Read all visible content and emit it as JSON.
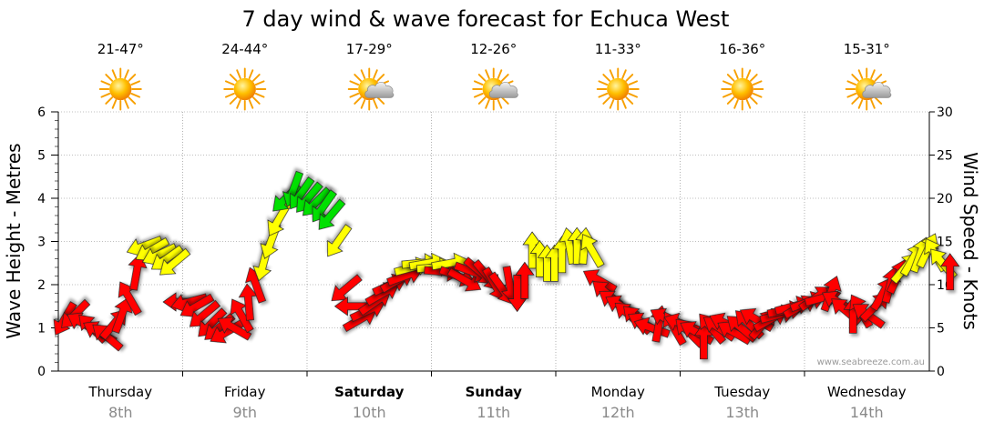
{
  "title": "7 day wind & wave forecast for Echuca West",
  "credit": "www.seabreeze.com.au",
  "colors": {
    "low": "#ff0000",
    "mid": "#ffff00",
    "high": "#00e000",
    "grid": "#808080"
  },
  "days": [
    {
      "name": "Thursday",
      "date": "8th",
      "temp": "21-47°",
      "icon": "sun-icon",
      "bold": false
    },
    {
      "name": "Friday",
      "date": "9th",
      "temp": "24-44°",
      "icon": "sun-icon",
      "bold": false
    },
    {
      "name": "Saturday",
      "date": "10th",
      "temp": "17-29°",
      "icon": "sun-cloud-icon",
      "bold": true
    },
    {
      "name": "Sunday",
      "date": "11th",
      "temp": "12-26°",
      "icon": "sun-cloud-icon",
      "bold": true
    },
    {
      "name": "Monday",
      "date": "12th",
      "temp": "11-33°",
      "icon": "sun-icon",
      "bold": false
    },
    {
      "name": "Tuesday",
      "date": "13th",
      "temp": "16-36°",
      "icon": "sun-icon",
      "bold": false
    },
    {
      "name": "Wednesday",
      "date": "14th",
      "temp": "15-31°",
      "icon": "sun-cloud-icon",
      "bold": false
    }
  ],
  "chart_data": {
    "type": "scatter",
    "title": "7 day wind & wave forecast for Echuca West",
    "ylabel_left": "Wave Height - Metres",
    "ylabel_right": "Wind Speed - Knots",
    "ylim_left": [
      0,
      6
    ],
    "ylim_right": [
      0,
      30
    ],
    "yticks_left": [
      "0",
      "1",
      "2",
      "3",
      "4",
      "5",
      "6"
    ],
    "yticks_right": [
      "0",
      "5",
      "10",
      "15",
      "20",
      "25",
      "30"
    ],
    "grid": true,
    "x_unit": "days from start of Thursday 8th",
    "xlim": [
      -0.25,
      7.0
    ],
    "series": [
      {
        "values": [
          {
            "x": -0.2,
            "y": 6.0,
            "dir": 210
          },
          {
            "x": -0.12,
            "y": 6.5,
            "dir": 225
          },
          {
            "x": -0.05,
            "y": 5.5,
            "dir": 300
          },
          {
            "x": 0.02,
            "y": 5.0,
            "dir": 315
          },
          {
            "x": 0.08,
            "y": 4.5,
            "dir": 300
          },
          {
            "x": 0.14,
            "y": 4.0,
            "dir": 310
          },
          {
            "x": 0.2,
            "y": 5.5,
            "dir": 40
          },
          {
            "x": 0.26,
            "y": 6.5,
            "dir": 20
          },
          {
            "x": 0.32,
            "y": 8.5,
            "dir": 330
          },
          {
            "x": 0.38,
            "y": 11.5,
            "dir": 10
          },
          {
            "x": 0.44,
            "y": 14.5,
            "dir": 250
          },
          {
            "x": 0.5,
            "y": 14.0,
            "dir": 240
          },
          {
            "x": 0.56,
            "y": 13.5,
            "dir": 245
          },
          {
            "x": 0.62,
            "y": 13.0,
            "dir": 235
          },
          {
            "x": 0.68,
            "y": 12.5,
            "dir": 230
          },
          {
            "x": 0.74,
            "y": 8.0,
            "dir": 270
          },
          {
            "x": 0.8,
            "y": 8.0,
            "dir": 255
          },
          {
            "x": 0.86,
            "y": 7.5,
            "dir": 240
          },
          {
            "x": 0.92,
            "y": 6.5,
            "dir": 230
          },
          {
            "x": 0.98,
            "y": 5.5,
            "dir": 225
          },
          {
            "x": 1.04,
            "y": 5.0,
            "dir": 230
          },
          {
            "x": 1.1,
            "y": 4.5,
            "dir": 240
          },
          {
            "x": 1.16,
            "y": 5.0,
            "dir": 300
          },
          {
            "x": 1.22,
            "y": 6.5,
            "dir": 330
          },
          {
            "x": 1.28,
            "y": 8.0,
            "dir": 355
          },
          {
            "x": 1.34,
            "y": 10.0,
            "dir": 340
          },
          {
            "x": 1.4,
            "y": 12.5,
            "dir": 195
          },
          {
            "x": 1.46,
            "y": 15.0,
            "dir": 200
          },
          {
            "x": 1.52,
            "y": 17.5,
            "dir": 210
          },
          {
            "x": 1.58,
            "y": 20.0,
            "dir": 225
          },
          {
            "x": 1.64,
            "y": 21.0,
            "dir": 200
          },
          {
            "x": 1.7,
            "y": 20.5,
            "dir": 215
          },
          {
            "x": 1.76,
            "y": 20.0,
            "dir": 220
          },
          {
            "x": 1.82,
            "y": 19.5,
            "dir": 225
          },
          {
            "x": 1.88,
            "y": 19.0,
            "dir": 215
          },
          {
            "x": 1.94,
            "y": 18.0,
            "dir": 220
          },
          {
            "x": 2.0,
            "y": 15.0,
            "dir": 215
          },
          {
            "x": 2.06,
            "y": 9.5,
            "dir": 230
          },
          {
            "x": 2.12,
            "y": 7.5,
            "dir": 270
          },
          {
            "x": 2.18,
            "y": 6.0,
            "dir": 60
          },
          {
            "x": 2.24,
            "y": 7.0,
            "dir": 65
          },
          {
            "x": 2.3,
            "y": 8.0,
            "dir": 55
          },
          {
            "x": 2.36,
            "y": 9.0,
            "dir": 60
          },
          {
            "x": 2.42,
            "y": 10.0,
            "dir": 65
          },
          {
            "x": 2.48,
            "y": 10.5,
            "dir": 60
          },
          {
            "x": 2.54,
            "y": 11.0,
            "dir": 70
          },
          {
            "x": 2.6,
            "y": 12.0,
            "dir": 75
          },
          {
            "x": 2.66,
            "y": 12.5,
            "dir": 85
          },
          {
            "x": 2.72,
            "y": 12.5,
            "dir": 80
          },
          {
            "x": 2.78,
            "y": 12.0,
            "dir": 85
          },
          {
            "x": 2.84,
            "y": 11.5,
            "dir": 95
          },
          {
            "x": 2.9,
            "y": 12.5,
            "dir": 80
          },
          {
            "x": 2.96,
            "y": 11.0,
            "dir": 110
          },
          {
            "x": 3.02,
            "y": 10.5,
            "dir": 120
          },
          {
            "x": 3.08,
            "y": 11.5,
            "dir": 110
          },
          {
            "x": 3.14,
            "y": 11.5,
            "dir": 130
          },
          {
            "x": 3.2,
            "y": 11.0,
            "dir": 140
          },
          {
            "x": 3.26,
            "y": 10.0,
            "dir": 150
          },
          {
            "x": 3.32,
            "y": 9.5,
            "dir": 145
          },
          {
            "x": 3.38,
            "y": 10.0,
            "dir": 170
          },
          {
            "x": 3.44,
            "y": 9.0,
            "dir": 180
          },
          {
            "x": 3.5,
            "y": 10.5,
            "dir": 0
          },
          {
            "x": 3.56,
            "y": 14.0,
            "dir": 0
          },
          {
            "x": 3.62,
            "y": 13.0,
            "dir": 0
          },
          {
            "x": 3.68,
            "y": 12.5,
            "dir": 0
          },
          {
            "x": 3.74,
            "y": 12.5,
            "dir": 0
          },
          {
            "x": 3.8,
            "y": 13.5,
            "dir": 0
          },
          {
            "x": 3.86,
            "y": 14.5,
            "dir": 350
          },
          {
            "x": 3.92,
            "y": 14.5,
            "dir": 0
          },
          {
            "x": 3.98,
            "y": 14.5,
            "dir": 5
          },
          {
            "x": 4.04,
            "y": 14.0,
            "dir": 330
          },
          {
            "x": 4.1,
            "y": 10.5,
            "dir": 300
          },
          {
            "x": 4.16,
            "y": 9.0,
            "dir": 310
          },
          {
            "x": 4.22,
            "y": 8.0,
            "dir": 305
          },
          {
            "x": 4.28,
            "y": 7.5,
            "dir": 300
          },
          {
            "x": 4.34,
            "y": 6.5,
            "dir": 310
          },
          {
            "x": 4.4,
            "y": 6.0,
            "dir": 315
          },
          {
            "x": 4.46,
            "y": 5.5,
            "dir": 300
          },
          {
            "x": 4.52,
            "y": 5.0,
            "dir": 290
          },
          {
            "x": 4.58,
            "y": 5.5,
            "dir": 10
          },
          {
            "x": 4.64,
            "y": 6.0,
            "dir": 300
          },
          {
            "x": 4.7,
            "y": 5.0,
            "dir": 330
          },
          {
            "x": 4.76,
            "y": 5.5,
            "dir": 290
          },
          {
            "x": 4.82,
            "y": 4.5,
            "dir": 315
          },
          {
            "x": 4.88,
            "y": 4.5,
            "dir": 300
          },
          {
            "x": 4.94,
            "y": 3.5,
            "dir": 0
          },
          {
            "x": 5.0,
            "y": 5.0,
            "dir": 320
          },
          {
            "x": 5.06,
            "y": 5.0,
            "dir": 305
          },
          {
            "x": 5.12,
            "y": 5.5,
            "dir": 295
          },
          {
            "x": 5.18,
            "y": 4.5,
            "dir": 300
          },
          {
            "x": 5.24,
            "y": 5.0,
            "dir": 310
          },
          {
            "x": 5.3,
            "y": 5.5,
            "dir": 315
          },
          {
            "x": 5.36,
            "y": 6.0,
            "dir": 300
          },
          {
            "x": 5.42,
            "y": 5.5,
            "dir": 40
          },
          {
            "x": 5.48,
            "y": 6.0,
            "dir": 60
          },
          {
            "x": 5.54,
            "y": 6.5,
            "dir": 75
          },
          {
            "x": 5.6,
            "y": 7.0,
            "dir": 80
          },
          {
            "x": 5.66,
            "y": 7.5,
            "dir": 75
          },
          {
            "x": 5.72,
            "y": 7.5,
            "dir": 60
          },
          {
            "x": 5.78,
            "y": 8.0,
            "dir": 70
          },
          {
            "x": 5.84,
            "y": 8.5,
            "dir": 55
          },
          {
            "x": 5.9,
            "y": 8.5,
            "dir": 75
          },
          {
            "x": 5.96,
            "y": 9.0,
            "dir": 20
          },
          {
            "x": 6.02,
            "y": 8.0,
            "dir": 300
          },
          {
            "x": 6.08,
            "y": 7.0,
            "dir": 310
          },
          {
            "x": 6.14,
            "y": 6.5,
            "dir": 0
          },
          {
            "x": 6.2,
            "y": 7.0,
            "dir": 330
          },
          {
            "x": 6.26,
            "y": 6.5,
            "dir": 305
          },
          {
            "x": 6.32,
            "y": 7.5,
            "dir": 45
          },
          {
            "x": 6.38,
            "y": 9.0,
            "dir": 30
          },
          {
            "x": 6.44,
            "y": 10.0,
            "dir": 15
          },
          {
            "x": 6.5,
            "y": 11.0,
            "dir": 25
          },
          {
            "x": 6.56,
            "y": 12.0,
            "dir": 40
          },
          {
            "x": 6.62,
            "y": 13.0,
            "dir": 30
          },
          {
            "x": 6.68,
            "y": 13.5,
            "dir": 20
          },
          {
            "x": 6.74,
            "y": 14.0,
            "dir": 25
          },
          {
            "x": 6.8,
            "y": 13.5,
            "dir": 330
          },
          {
            "x": 6.86,
            "y": 12.5,
            "dir": 320
          },
          {
            "x": 6.92,
            "y": 11.5,
            "dir": 0
          }
        ]
      }
    ]
  }
}
